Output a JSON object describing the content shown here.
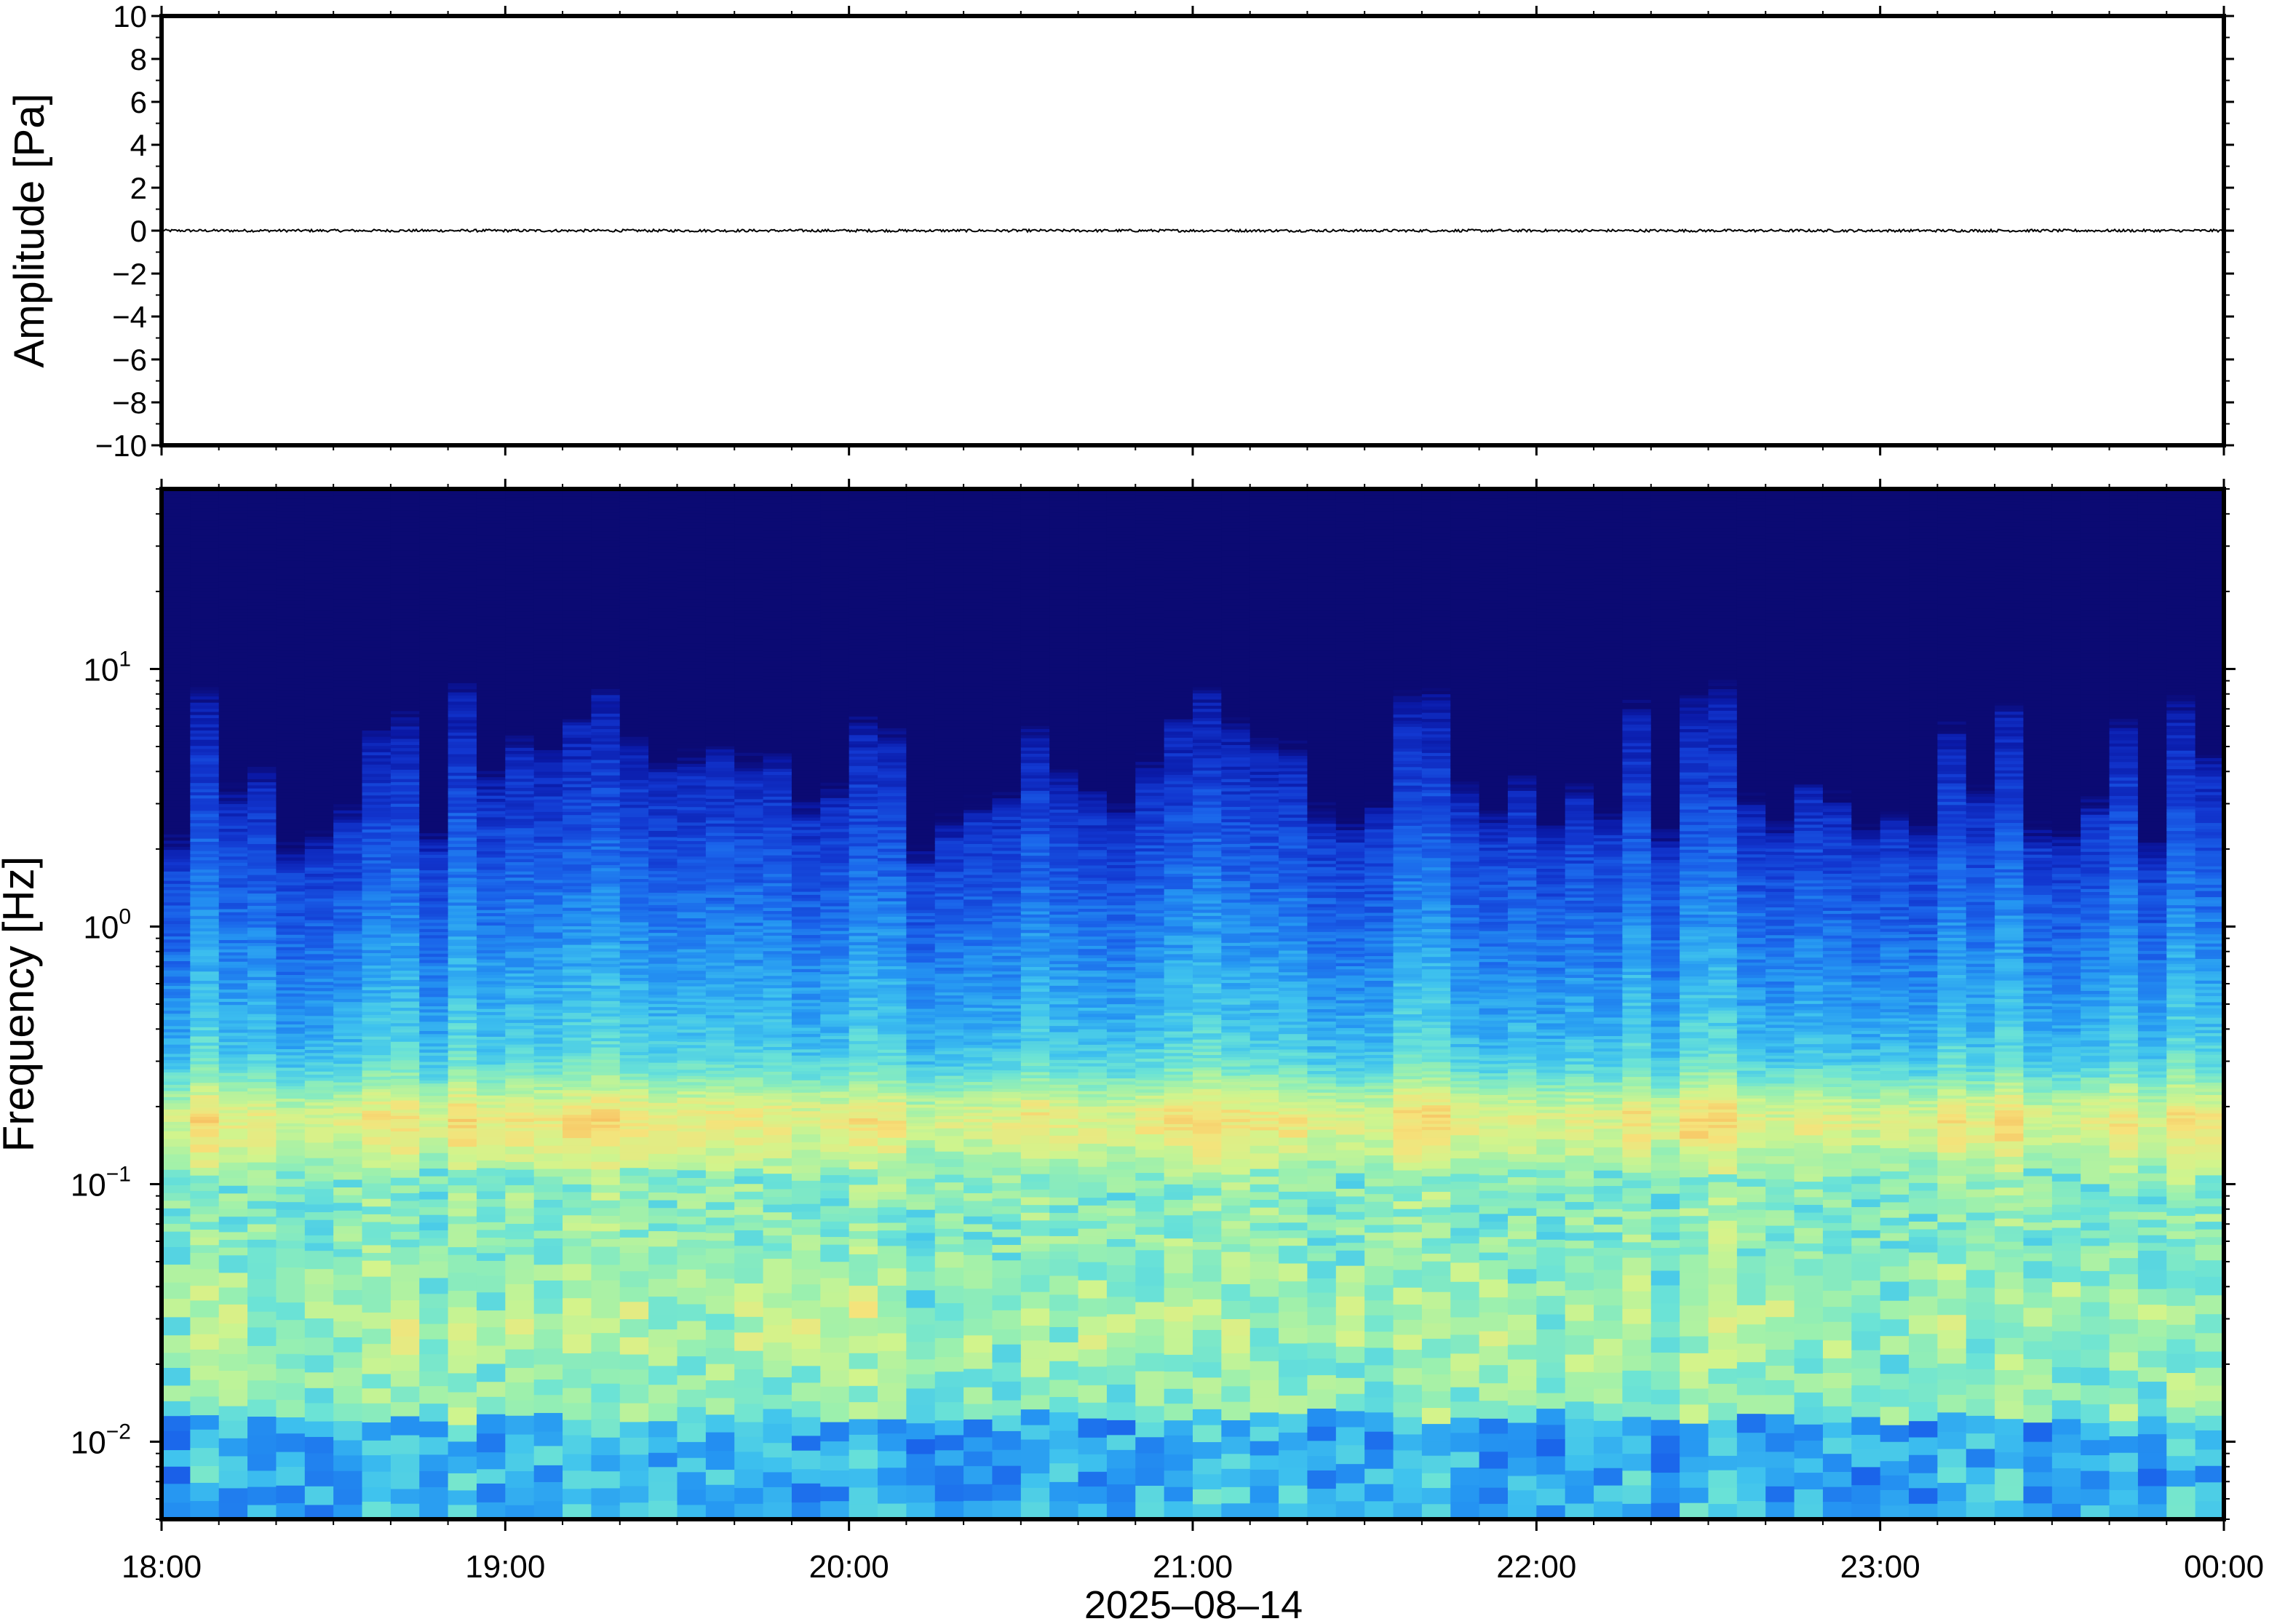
{
  "chart_data": [
    {
      "type": "line",
      "ylabel": "Amplitude [Pa]",
      "ylim": [
        -10,
        10
      ],
      "yticks": [
        10,
        8,
        6,
        4,
        2,
        0,
        -2,
        -4,
        -6,
        -8,
        -10
      ],
      "ytick_labels": [
        "10",
        "8",
        "6",
        "4",
        "2",
        "0",
        "−2",
        "−4",
        "−6",
        "−8",
        "−10"
      ],
      "series": [
        {
          "values_note": "",
          "baseline": 0,
          "noise_amplitude": 0.06,
          "color": "#000000"
        }
      ]
    },
    {
      "type": "heatmap",
      "ylabel": "Frequency [Hz]",
      "yscale": "log",
      "ylim": [
        0.005,
        50
      ],
      "ytick_labels": [
        {
          "base": "10",
          "exp": "1",
          "value": 10
        },
        {
          "base": "10",
          "exp": "0",
          "value": 1
        },
        {
          "base": "10",
          "exp": "−1",
          "value": 0.1
        },
        {
          "base": "10",
          "exp": "−2",
          "value": 0.01
        }
      ],
      "colormap": [
        "#0b0a73",
        "#0a1aa8",
        "#1237d0",
        "#1a63ea",
        "#2596f2",
        "#3fc3ee",
        "#6be3d6",
        "#9bf0ae",
        "#d2f48c",
        "#f6e27a",
        "#f7b85c",
        "#ef8444"
      ],
      "peak_band_hz": 0.18,
      "microbarom_hz": 0.03
    }
  ],
  "x_axis": {
    "tick_labels": [
      "18:00",
      "19:00",
      "20:00",
      "21:00",
      "22:00",
      "23:00",
      "00:00"
    ],
    "xlabel": "2025–08–14"
  }
}
